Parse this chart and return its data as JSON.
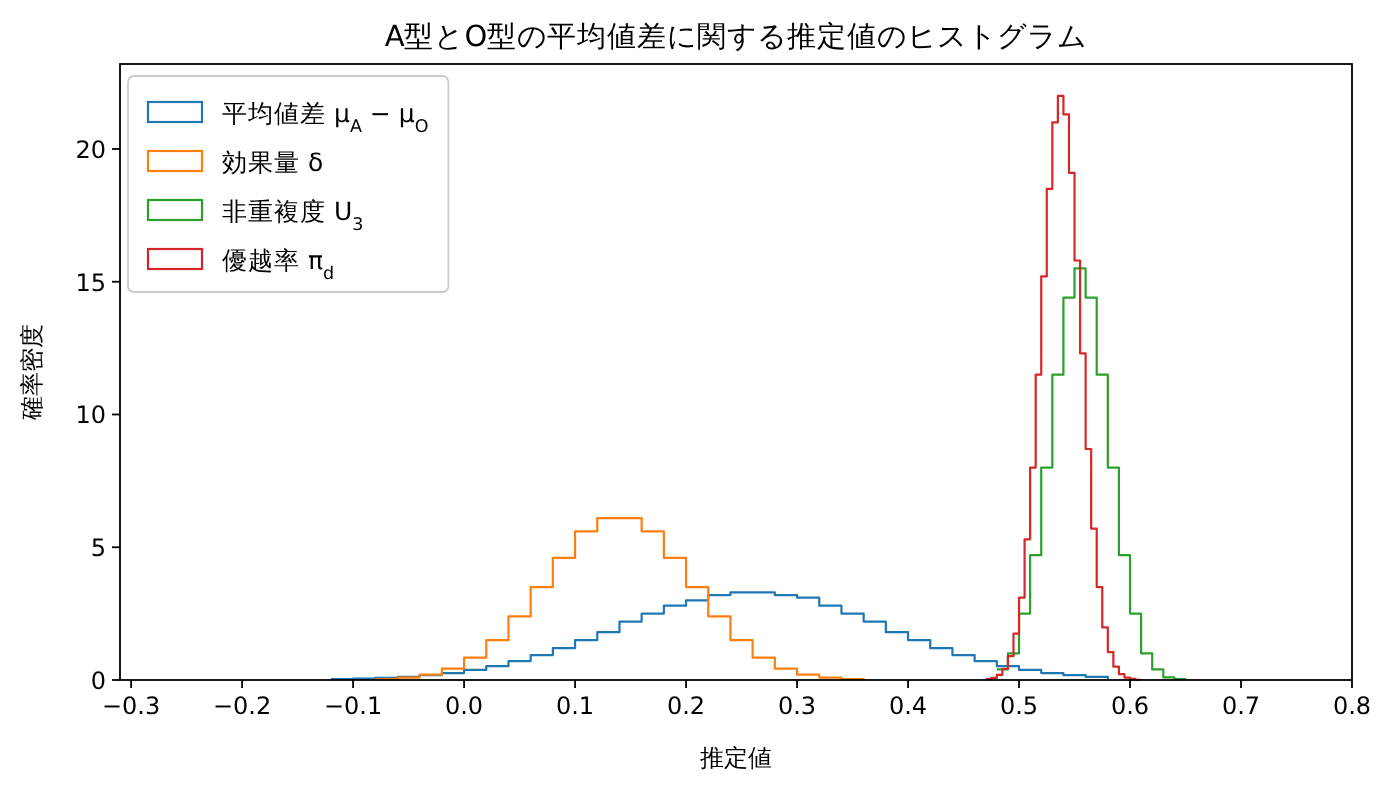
{
  "chart_data": {
    "type": "step",
    "title": "A型とO型の平均値差に関する推定値のヒストグラム",
    "xlabel": "推定値",
    "ylabel": "確率密度",
    "xlim": [
      -0.31,
      0.8
    ],
    "ylim": [
      0,
      23.2
    ],
    "xticks": [
      {
        "value": -0.3,
        "label": "−0.3"
      },
      {
        "value": -0.2,
        "label": "−0.2"
      },
      {
        "value": -0.1,
        "label": "−0.1"
      },
      {
        "value": 0,
        "label": "0.0"
      },
      {
        "value": 0.1,
        "label": "0.1"
      },
      {
        "value": 0.2,
        "label": "0.2"
      },
      {
        "value": 0.3,
        "label": "0.3"
      },
      {
        "value": 0.4,
        "label": "0.4"
      },
      {
        "value": 0.5,
        "label": "0.5"
      },
      {
        "value": 0.6,
        "label": "0.6"
      },
      {
        "value": 0.7,
        "label": "0.7"
      },
      {
        "value": 0.8,
        "label": "0.8"
      }
    ],
    "yticks": [
      {
        "value": 0,
        "label": "0"
      },
      {
        "value": 5,
        "label": "5"
      },
      {
        "value": 10,
        "label": "10"
      },
      {
        "value": 15,
        "label": "15"
      },
      {
        "value": 20,
        "label": "20"
      }
    ],
    "legend": "top left",
    "series": [
      {
        "name": "平均値差 μ$_{A}$ − μ$_{O}$",
        "color": "#1f77b4",
        "x": [
          -0.12,
          -0.1,
          -0.08,
          -0.06,
          -0.04,
          -0.02,
          0.0,
          0.02,
          0.04,
          0.06,
          0.08,
          0.1,
          0.12,
          0.14,
          0.16,
          0.18,
          0.2,
          0.22,
          0.24,
          0.26,
          0.28,
          0.3,
          0.32,
          0.34,
          0.36,
          0.38,
          0.4,
          0.42,
          0.44,
          0.46,
          0.48,
          0.5,
          0.52,
          0.54,
          0.56,
          0.58
        ],
        "values": [
          0.03,
          0.05,
          0.08,
          0.12,
          0.18,
          0.26,
          0.38,
          0.52,
          0.71,
          0.94,
          1.2,
          1.5,
          1.8,
          2.2,
          2.5,
          2.8,
          3.0,
          3.2,
          3.3,
          3.3,
          3.2,
          3.1,
          2.8,
          2.5,
          2.2,
          1.8,
          1.5,
          1.2,
          0.94,
          0.71,
          0.52,
          0.38,
          0.26,
          0.18,
          0.12,
          0
        ]
      },
      {
        "name": "効果量 δ",
        "color": "#ff7f0e",
        "x": [
          -0.08,
          -0.06,
          -0.04,
          -0.02,
          0.0,
          0.02,
          0.04,
          0.06,
          0.08,
          0.1,
          0.12,
          0.14,
          0.16,
          0.18,
          0.2,
          0.22,
          0.24,
          0.26,
          0.28,
          0.3,
          0.32,
          0.34,
          0.36
        ],
        "values": [
          0.03,
          0.09,
          0.2,
          0.43,
          0.84,
          1.5,
          2.4,
          3.5,
          4.6,
          5.6,
          6.1,
          6.1,
          5.6,
          4.6,
          3.5,
          2.4,
          1.5,
          0.84,
          0.43,
          0.2,
          0.09,
          0.03,
          0
        ]
      },
      {
        "name": "非重複度 U$_{3}$",
        "color": "#2ca02c",
        "x": [
          0.48,
          0.49,
          0.5,
          0.51,
          0.52,
          0.53,
          0.54,
          0.55,
          0.56,
          0.57,
          0.58,
          0.59,
          0.6,
          0.61,
          0.62,
          0.63,
          0.64,
          0.65
        ],
        "values": [
          0.4,
          1.0,
          2.5,
          4.7,
          8.0,
          11.5,
          14.4,
          15.5,
          14.4,
          11.5,
          8.0,
          4.7,
          2.5,
          1.0,
          0.4,
          0.1,
          0.03,
          0
        ]
      },
      {
        "name": "優越率 π$_{d}$",
        "color": "#d62728",
        "x": [
          0.47,
          0.475,
          0.48,
          0.485,
          0.49,
          0.495,
          0.5,
          0.505,
          0.51,
          0.515,
          0.52,
          0.525,
          0.53,
          0.535,
          0.54,
          0.545,
          0.55,
          0.555,
          0.56,
          0.565,
          0.57,
          0.575,
          0.58,
          0.585,
          0.59,
          0.595,
          0.6,
          0.605,
          0.61
        ],
        "values": [
          0.03,
          0.08,
          0.19,
          0.42,
          0.9,
          1.75,
          3.1,
          5.3,
          8.0,
          11.5,
          15.2,
          18.5,
          21.0,
          22.0,
          21.3,
          19.1,
          15.8,
          12.3,
          8.7,
          5.7,
          3.5,
          1.98,
          1.05,
          0.5,
          0.22,
          0.09,
          0.04,
          0.01,
          0
        ]
      }
    ]
  }
}
